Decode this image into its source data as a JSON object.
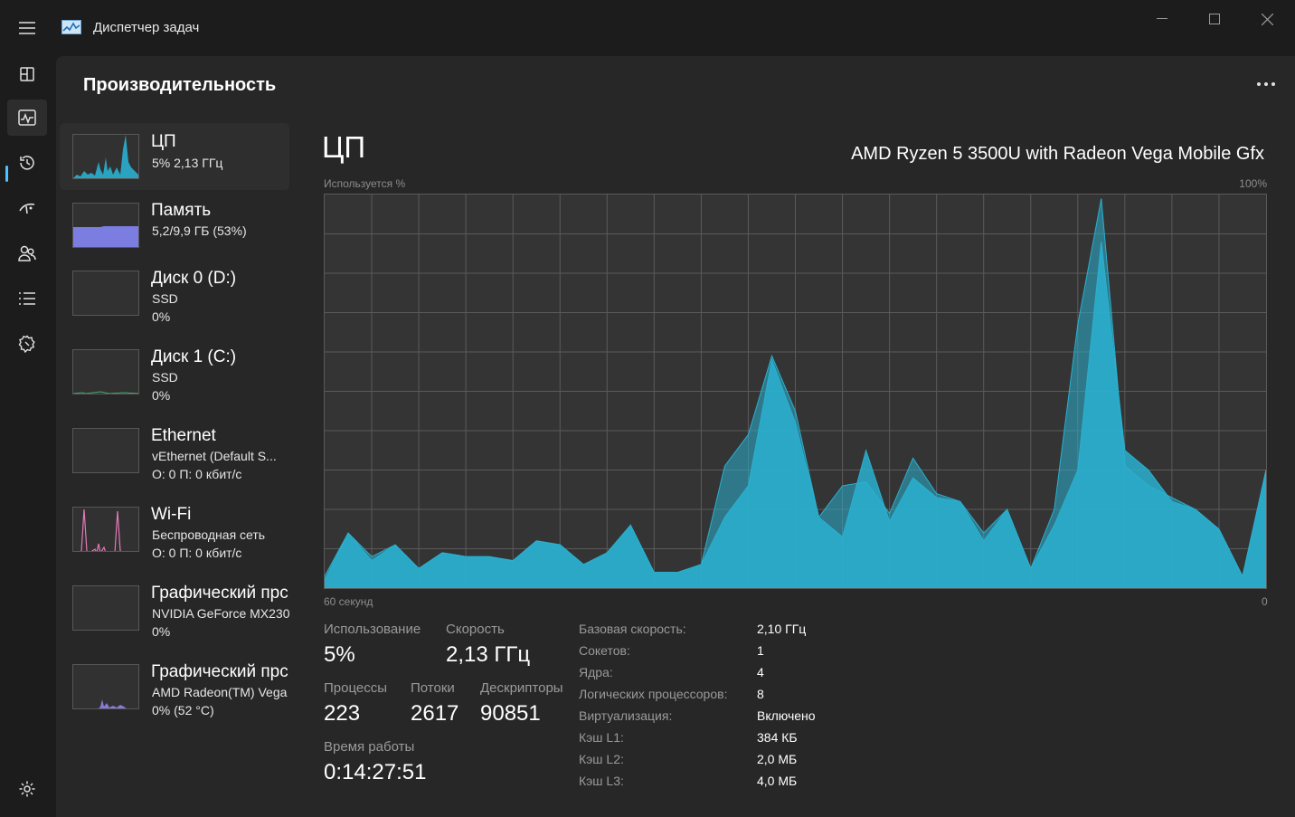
{
  "app": {
    "title": "Диспетчер задач"
  },
  "page": {
    "title": "Производительность"
  },
  "colors": {
    "accent": "#4cc2ff",
    "cpu": "#2ab0d0",
    "memory": "#7b7ee0",
    "wifi": "#e27ab8",
    "gpu": "#8a78d8"
  },
  "devices": [
    {
      "name": "ЦП",
      "line1": "5%  2,13 ГГц",
      "line2": "",
      "selected": true
    },
    {
      "name": "Память",
      "line1": "5,2/9,9 ГБ (53%)",
      "line2": ""
    },
    {
      "name": "Диск 0 (D:)",
      "line1": "SSD",
      "line2": "0%"
    },
    {
      "name": "Диск 1 (C:)",
      "line1": "SSD",
      "line2": "0%"
    },
    {
      "name": "Ethernet",
      "line1": "vEthernet (Default S...",
      "line2": "О: 0  П: 0 кбит/с"
    },
    {
      "name": "Wi-Fi",
      "line1": "Беспроводная сеть",
      "line2": "О: 0  П: 0 кбит/с"
    },
    {
      "name": "Графический прс",
      "line1": "NVIDIA GeForce MX230",
      "line2": "0%"
    },
    {
      "name": "Графический прс",
      "line1": "AMD Radeon(TM) Vega",
      "line2": "0%  (52 °C)"
    }
  ],
  "cpu": {
    "title": "ЦП",
    "model": "AMD Ryzen 5 3500U with Radeon Vega Mobile Gfx",
    "graph_label": "Используется %",
    "graph_max": "100%",
    "time_label": "60 секунд",
    "time_end": "0"
  },
  "stats": {
    "usage_label": "Использование",
    "usage_value": "5%",
    "speed_label": "Скорость",
    "speed_value": "2,13 ГГц",
    "processes_label": "Процессы",
    "processes_value": "223",
    "threads_label": "Потоки",
    "threads_value": "2617",
    "handles_label": "Дескрипторы",
    "handles_value": "90851",
    "uptime_label": "Время работы",
    "uptime_value": "0:14:27:51"
  },
  "specs": [
    {
      "label": "Базовая скорость:",
      "value": "2,10 ГГц"
    },
    {
      "label": "Сокетов:",
      "value": "1"
    },
    {
      "label": "Ядра:",
      "value": "4"
    },
    {
      "label": "Логических процессоров:",
      "value": "8"
    },
    {
      "label": "Виртуализация:",
      "value": "Включено"
    },
    {
      "label": "Кэш L1:",
      "value": "384 КБ"
    },
    {
      "label": "Кэш L2:",
      "value": "2,0 МБ"
    },
    {
      "label": "Кэш L3:",
      "value": "4,0 МБ"
    }
  ],
  "chart_data": {
    "type": "area",
    "xlabel": "60 секунд",
    "ylabel": "Используется %",
    "ylim": [
      0,
      100
    ],
    "x": [
      60,
      58.5,
      57,
      55.5,
      54,
      52.5,
      51,
      49.5,
      48,
      46.5,
      45,
      43.5,
      42,
      40.5,
      39,
      37.5,
      36,
      34.5,
      33,
      31.5,
      30,
      28.5,
      27,
      25.5,
      24,
      22.5,
      21,
      19.5,
      18,
      16.5,
      15,
      13.5,
      12,
      10.5,
      9,
      7.5,
      6,
      4.5,
      3,
      1.5,
      0
    ],
    "series": [
      {
        "values": [
          2,
          14,
          7,
          11,
          5,
          9,
          8,
          8,
          7,
          12,
          11,
          6,
          9,
          16,
          4,
          4,
          6,
          18,
          26,
          58,
          42,
          18,
          13,
          35,
          17,
          28,
          23,
          22,
          12,
          20,
          5,
          16,
          30,
          88,
          35,
          30,
          22,
          20,
          15,
          3,
          30
        ]
      },
      {
        "values": [
          3,
          14,
          8,
          11,
          5,
          9,
          8,
          8,
          7,
          12,
          11,
          6,
          9,
          16,
          4,
          4,
          6,
          31,
          39,
          59,
          45,
          18,
          26,
          27,
          19,
          33,
          24,
          22,
          14,
          20,
          5,
          20,
          67,
          99,
          31,
          26,
          23,
          20,
          15,
          3,
          30
        ]
      }
    ]
  }
}
